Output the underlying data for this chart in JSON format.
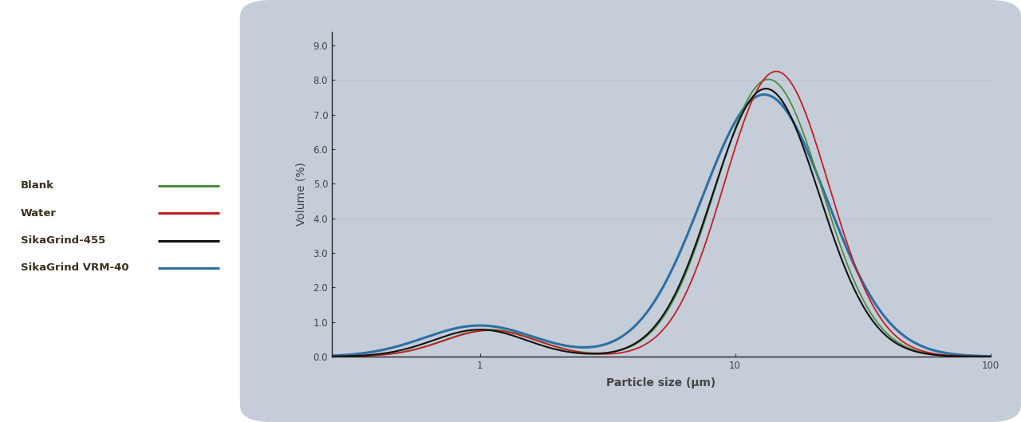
{
  "xlabel": "Particle size (μm)",
  "ylabel": "Volume (%)",
  "background_color": "#c5cdd9",
  "plot_bg_color": "#c5cdd9",
  "yticks": [
    0.0,
    1.0,
    2.0,
    3.0,
    4.0,
    5.0,
    6.0,
    7.0,
    8.0,
    9.0
  ],
  "ylim": [
    0.0,
    9.4
  ],
  "series": [
    {
      "label": "Blank",
      "color": "#4a8c3f",
      "linewidth": 1.3,
      "zorder": 3
    },
    {
      "label": "Water",
      "color": "#c02020",
      "linewidth": 1.3,
      "zorder": 4
    },
    {
      "label": "SikaGrind-455",
      "color": "#111111",
      "linewidth": 1.5,
      "zorder": 5
    },
    {
      "label": "SikaGrind VRM-40",
      "color": "#2e6fa3",
      "linewidth": 2.2,
      "zorder": 2
    }
  ],
  "grid_color": "#b8c2ce",
  "grid_levels": [
    4.0,
    8.0
  ],
  "axis_color": "#222222",
  "tick_color": "#333333",
  "label_color": "#444444",
  "legend_text_color": "#3a3020",
  "legend_entries": [
    {
      "label": "Blank",
      "color": "#4a8c3f"
    },
    {
      "label": "Water",
      "color": "#c02020"
    },
    {
      "label": "SikaGrind-455",
      "color": "#111111"
    },
    {
      "label": "SikaGrind VRM-40",
      "color": "#2e6fa3"
    }
  ]
}
